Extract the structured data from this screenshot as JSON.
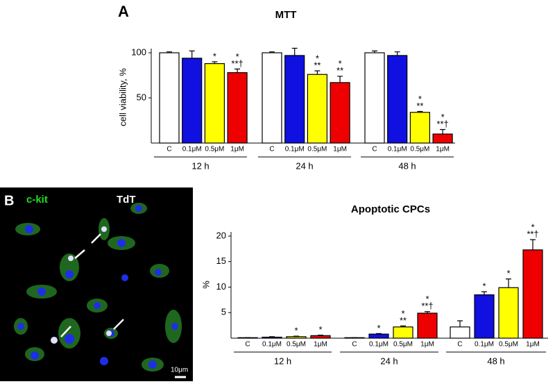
{
  "panel_labels": [
    "A",
    "B"
  ],
  "image": {
    "channel_labels": [
      "c-kit",
      "TdT"
    ],
    "scale_bar": "10μm"
  },
  "chart_data": [
    {
      "type": "bar",
      "title": "MTT",
      "y_label": "cell viability, %",
      "categories": [
        "12 h",
        "24 h",
        "48 h"
      ],
      "ylim": [
        0,
        100
      ],
      "yticks": [
        50,
        100
      ],
      "series": [
        {
          "name": "C",
          "color": "#ffffff",
          "values": [
            100,
            100,
            100
          ],
          "errors": [
            1,
            1,
            2
          ],
          "annotations": [
            null,
            null,
            null
          ]
        },
        {
          "name": "0.1μM",
          "color": "#1010e0",
          "values": [
            94,
            97,
            97
          ],
          "errors": [
            8,
            8,
            4
          ],
          "annotations": [
            null,
            null,
            null
          ]
        },
        {
          "name": "0.5μM",
          "color": "#ffff00",
          "values": [
            88,
            76,
            34
          ],
          "errors": [
            2,
            4,
            1
          ],
          "annotations": [
            [
              "*"
            ],
            [
              "*",
              "**"
            ],
            [
              "*",
              "**"
            ]
          ]
        },
        {
          "name": "1μM",
          "color": "#ee0000",
          "values": [
            78,
            67,
            10
          ],
          "errors": [
            4,
            7,
            5
          ],
          "annotations": [
            [
              "*",
              "**†"
            ],
            [
              "*",
              "**"
            ],
            [
              "*",
              "**†"
            ]
          ]
        }
      ]
    },
    {
      "type": "bar",
      "title": "Apoptotic CPCs",
      "y_label": "%",
      "categories": [
        "12 h",
        "24 h",
        "48 h"
      ],
      "ylim": [
        0,
        20
      ],
      "yticks": [
        5,
        10,
        15,
        20
      ],
      "series": [
        {
          "name": "C",
          "color": "#ffffff",
          "values": [
            0.1,
            0.1,
            2.2
          ],
          "errors": [
            0,
            0,
            1.2
          ],
          "annotations": [
            null,
            null,
            null
          ]
        },
        {
          "name": "0.1μM",
          "color": "#1010e0",
          "values": [
            0.2,
            0.8,
            8.5
          ],
          "errors": [
            0.1,
            0.1,
            0.6
          ],
          "annotations": [
            null,
            [
              "*"
            ],
            [
              "*"
            ]
          ]
        },
        {
          "name": "0.5μM",
          "color": "#ffff00",
          "values": [
            0.3,
            2.2,
            9.9
          ],
          "errors": [
            0.1,
            0.2,
            1.7
          ],
          "annotations": [
            [
              "*"
            ],
            [
              "*",
              "**"
            ],
            [
              "*"
            ]
          ]
        },
        {
          "name": "1μM",
          "color": "#ee0000",
          "values": [
            0.5,
            4.9,
            17.3
          ],
          "errors": [
            0.1,
            0.3,
            2.0
          ],
          "annotations": [
            [
              "*"
            ],
            [
              "*",
              "**†"
            ],
            [
              "*",
              "**†"
            ]
          ]
        }
      ]
    }
  ]
}
